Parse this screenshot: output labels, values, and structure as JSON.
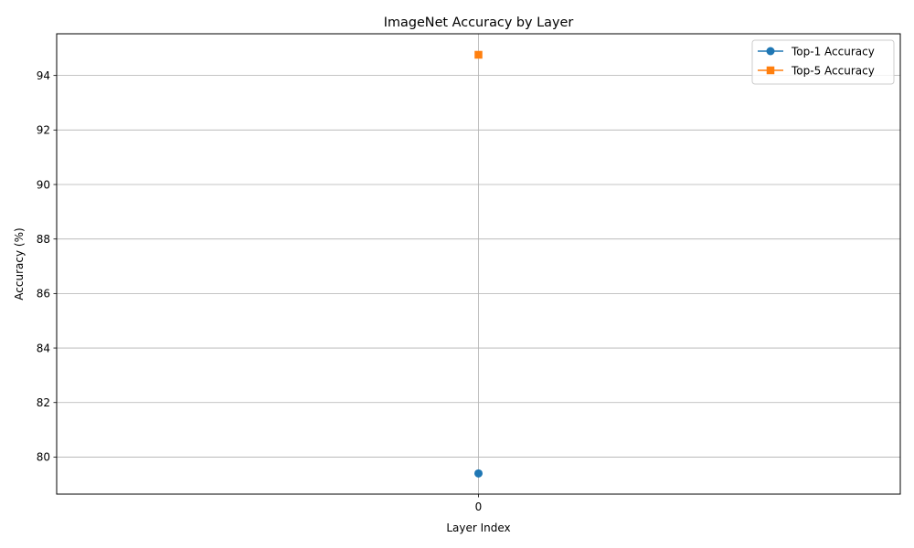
{
  "chart_data": {
    "type": "line",
    "title": "ImageNet Accuracy by Layer",
    "xlabel": "Layer Index",
    "ylabel": "Accuracy (%)",
    "x": [
      0
    ],
    "x_ticks": [
      0
    ],
    "y_ticks": [
      80,
      82,
      84,
      86,
      88,
      90,
      92,
      94
    ],
    "xlim": [
      -1,
      1
    ],
    "ylim": [
      78.64,
      95.53
    ],
    "grid": true,
    "legend_position": "top-right",
    "series": [
      {
        "name": "Top-1 Accuracy",
        "values": [
          79.4
        ],
        "color": "#1f77b4",
        "marker": "circle"
      },
      {
        "name": "Top-5 Accuracy",
        "values": [
          94.76
        ],
        "color": "#ff7f0e",
        "marker": "square"
      }
    ]
  }
}
